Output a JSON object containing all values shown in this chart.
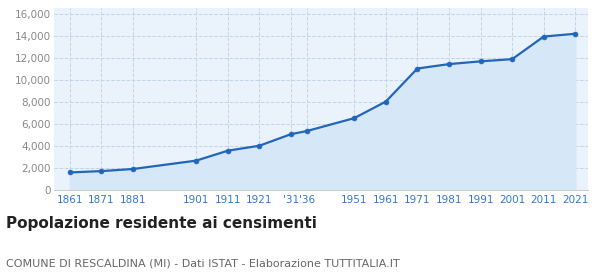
{
  "years": [
    1861,
    1871,
    1881,
    1901,
    1911,
    1921,
    1931,
    1936,
    1951,
    1961,
    1971,
    1981,
    1991,
    2001,
    2011,
    2021
  ],
  "population": [
    1630,
    1750,
    1940,
    2700,
    3600,
    4050,
    5100,
    5380,
    6550,
    8050,
    11050,
    11450,
    11700,
    11900,
    13950,
    14200
  ],
  "x_labels": [
    "1861",
    "1871",
    "1881",
    "1901",
    "1911",
    "1921",
    "'31",
    "'36",
    "1951",
    "1961",
    "1971",
    "1981",
    "1991",
    "2001",
    "2011",
    "2021"
  ],
  "x_positions": [
    1861,
    1871,
    1881,
    1901,
    1911,
    1921,
    1931,
    1936,
    1951,
    1961,
    1971,
    1981,
    1991,
    2001,
    2011,
    2021
  ],
  "line_color": "#2266bb",
  "fill_color": "#d6e8f7",
  "marker_color": "#2266bb",
  "background_color": "#ffffff",
  "plot_bg_color": "#eaf3fb",
  "grid_color": "#c0d4e8",
  "title": "Popolazione residente ai censimenti",
  "subtitle": "COMUNE DI RESCALDINA (MI) - Dati ISTAT - Elaborazione TUTTITALIA.IT",
  "title_fontsize": 11,
  "subtitle_fontsize": 8,
  "ytick_values": [
    0,
    2000,
    4000,
    6000,
    8000,
    10000,
    12000,
    14000,
    16000
  ],
  "ylim": [
    0,
    16500
  ],
  "xlim": [
    1856,
    2025
  ],
  "xlabel_color": "#3377cc",
  "ytick_color": "#888888"
}
